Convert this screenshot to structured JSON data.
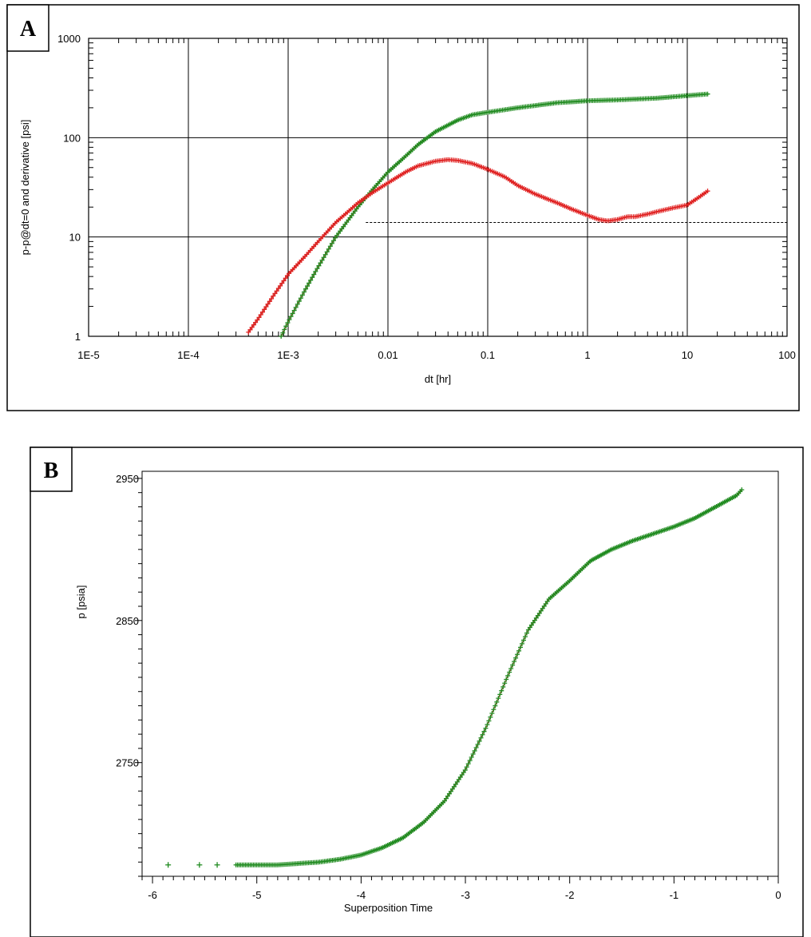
{
  "chart_data": [
    {
      "panel": "A",
      "type": "scatter",
      "xscale": "log",
      "yscale": "log",
      "xlabel": "dt [hr]",
      "ylabel": "p-p@dt=0 and derivative [psi]",
      "xlim": [
        1e-05,
        100
      ],
      "ylim": [
        1,
        1000
      ],
      "x_tick_labels": [
        "1E-5",
        "1E-4",
        "1E-3",
        "0.01",
        "0.1",
        "1",
        "10",
        "100"
      ],
      "x_tick_values": [
        1e-05,
        0.0001,
        0.001,
        0.01,
        0.1,
        1,
        10,
        100
      ],
      "y_tick_labels": [
        "1",
        "10",
        "100",
        "1000"
      ],
      "y_tick_values": [
        1,
        10,
        100,
        1000
      ],
      "grid": true,
      "reference_line": {
        "y": 14,
        "x_from": 0.006,
        "x_to": 100,
        "style": "dashed"
      },
      "colors": {
        "pressure": "#1e8a1e",
        "derivative": "#e02020",
        "model": "#b03020",
        "grid": "#000000"
      },
      "series": [
        {
          "role": "pressure",
          "x": [
            0.00085,
            0.001,
            0.0015,
            0.002,
            0.003,
            0.005,
            0.007,
            0.01,
            0.015,
            0.02,
            0.03,
            0.05,
            0.07,
            0.1,
            0.2,
            0.5,
            1,
            2,
            5,
            10,
            16
          ],
          "y": [
            1,
            1.4,
            3,
            5,
            10,
            20,
            30,
            45,
            65,
            85,
            115,
            150,
            170,
            180,
            200,
            225,
            235,
            240,
            250,
            265,
            275
          ]
        },
        {
          "role": "derivative",
          "x": [
            0.0004,
            0.0005,
            0.0007,
            0.001,
            0.0015,
            0.002,
            0.003,
            0.005,
            0.007,
            0.01,
            0.015,
            0.02,
            0.03,
            0.04,
            0.05,
            0.07,
            0.1,
            0.15,
            0.2,
            0.3,
            0.5,
            0.7,
            1,
            1.3,
            1.6,
            2,
            2.5,
            3,
            4,
            5,
            7,
            10,
            13,
            16
          ],
          "y": [
            1.1,
            1.5,
            2.5,
            4.2,
            6.5,
            9,
            14,
            22,
            28,
            35,
            45,
            52,
            58,
            60,
            59,
            55,
            48,
            40,
            33,
            27,
            22,
            19,
            16.5,
            15,
            14.5,
            15,
            16,
            16,
            17,
            18,
            19.5,
            21,
            25,
            29
          ]
        }
      ]
    },
    {
      "panel": "B",
      "type": "scatter",
      "xlabel": "Superposition Time",
      "ylabel": "p [psia]",
      "xlim": [
        -6.1,
        0
      ],
      "ylim": [
        2670,
        2955
      ],
      "x_tick_labels": [
        "-6",
        "-5",
        "-4",
        "-3",
        "-2",
        "-1",
        "0"
      ],
      "x_tick_values": [
        -6,
        -5,
        -4,
        -3,
        -2,
        -1,
        0
      ],
      "y_tick_labels": [
        "2750",
        "2850",
        "2950"
      ],
      "y_tick_values": [
        2750,
        2850,
        2950
      ],
      "grid": false,
      "colors": {
        "data": "#1e8a1e",
        "model": "#b03020"
      },
      "series": [
        {
          "role": "data",
          "x": [
            -5.85,
            -5.55,
            -5.38,
            -5.2,
            -5.0,
            -4.8,
            -4.6,
            -4.4,
            -4.2,
            -4.0,
            -3.8,
            -3.6,
            -3.4,
            -3.2,
            -3.0,
            -2.8,
            -2.6,
            -2.4,
            -2.2,
            -2.0,
            -1.9,
            -1.8,
            -1.6,
            -1.4,
            -1.2,
            -1.0,
            -0.8,
            -0.6,
            -0.5,
            -0.4,
            -0.35
          ],
          "y": [
            2678,
            2678,
            2678,
            2678,
            2678,
            2678,
            2679,
            2680,
            2682,
            2685,
            2690,
            2697,
            2708,
            2723,
            2745,
            2775,
            2810,
            2843,
            2865,
            2878,
            2885,
            2892,
            2900,
            2906,
            2911,
            2916,
            2922,
            2930,
            2934,
            2938,
            2942
          ]
        }
      ]
    }
  ]
}
